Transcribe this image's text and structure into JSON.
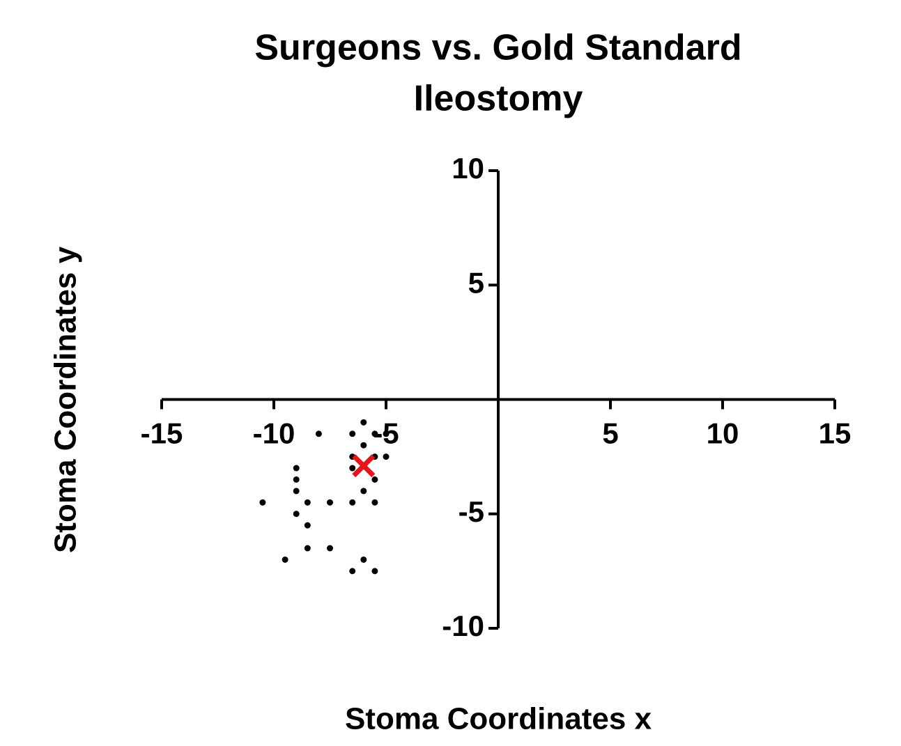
{
  "chart_data": {
    "type": "scatter",
    "title": [
      "Surgeons vs. Gold Standard",
      "Ileostomy"
    ],
    "x_label": "Stoma Coordinates x",
    "y_label": "Stoma Coordinates y",
    "xlim": [
      -15,
      15
    ],
    "ylim": [
      -10,
      10
    ],
    "xticks": [
      -15,
      -10,
      -5,
      5,
      10,
      15
    ],
    "yticks": [
      -10,
      -5,
      5,
      10
    ],
    "series": [
      {
        "color": "#000000",
        "marker": "dot",
        "x": [
          -6,
          -8,
          -6.5,
          -5.5,
          -5,
          -6,
          -6.5,
          -5.5,
          -5,
          -9,
          -6.5,
          -9,
          -5.5,
          -9,
          -6,
          -10.5,
          -8.5,
          -7.5,
          -6.5,
          -5.5,
          -9,
          -8.5,
          -8.5,
          -7.5,
          -9.5,
          -6,
          -6.5,
          -5.5
        ],
        "values": [
          -1,
          -1.5,
          -1.5,
          -1.5,
          -1.5,
          -2,
          -2.5,
          -2.5,
          -2.5,
          -3,
          -3,
          -3.5,
          -3.5,
          -4,
          -4,
          -4.5,
          -4.5,
          -4.5,
          -4.5,
          -4.5,
          -5,
          -5.5,
          -6.5,
          -6.5,
          -7,
          -7,
          -7.5,
          -7.5
        ]
      },
      {
        "color": "#e8141c",
        "marker": "cross",
        "x": [
          -6
        ],
        "values": [
          -2.9
        ]
      }
    ]
  }
}
